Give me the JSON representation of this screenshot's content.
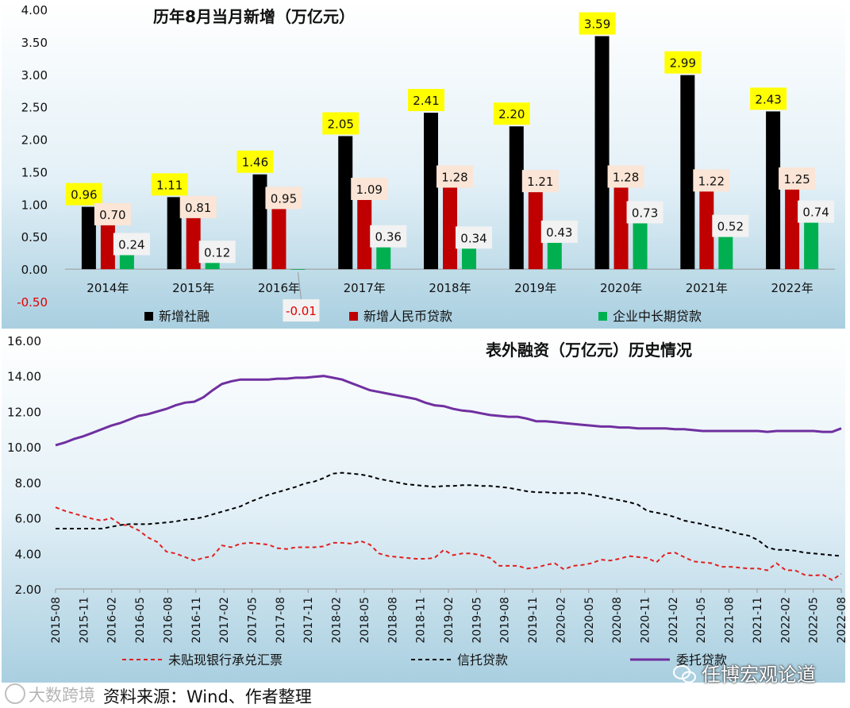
{
  "chart_data": [
    {
      "type": "bar",
      "title": "历年8月当月新增（万亿元）",
      "categories": [
        "2014年",
        "2015年",
        "2016年",
        "2017年",
        "2018年",
        "2019年",
        "2020年",
        "2021年",
        "2022年"
      ],
      "series": [
        {
          "name": "新增社融",
          "color": "#000000",
          "label_bg": "#ffff00",
          "values": [
            0.96,
            1.11,
            1.46,
            2.05,
            2.41,
            2.2,
            3.59,
            2.99,
            2.43
          ]
        },
        {
          "name": "新增人民币贷款",
          "color": "#c00000",
          "label_bg": "#fbe5d6",
          "values": [
            0.7,
            0.81,
            0.95,
            1.09,
            1.28,
            1.21,
            1.28,
            1.22,
            1.25
          ]
        },
        {
          "name": "企业中长期贷款",
          "color": "#00b050",
          "label_bg": "#f2f2f2",
          "values": [
            0.24,
            0.12,
            -0.01,
            0.36,
            0.34,
            0.43,
            0.73,
            0.52,
            0.74
          ]
        }
      ],
      "ylim": [
        -0.5,
        4.0
      ],
      "yticks": [
        "4.00",
        "3.50",
        "3.00",
        "2.50",
        "2.00",
        "1.50",
        "1.00",
        "0.50",
        "0.00",
        "-0.50"
      ],
      "legend": "bottom",
      "grid": false,
      "background": "gradient light-blue"
    },
    {
      "type": "line",
      "title": "表外融资（万亿元）历史情况",
      "ylim": [
        2.0,
        16.0
      ],
      "yticks": [
        "16.00",
        "14.00",
        "12.00",
        "10.00",
        "8.00",
        "6.00",
        "4.00",
        "2.00"
      ],
      "x_start": "2015-08",
      "x_end": "2022-08",
      "xticks": [
        "2015-08",
        "2015-11",
        "2016-02",
        "2016-05",
        "2016-08",
        "2016-11",
        "2017-02",
        "2017-05",
        "2017-08",
        "2017-11",
        "2018-02",
        "2018-05",
        "2018-08",
        "2018-11",
        "2019-02",
        "2019-05",
        "2019-08",
        "2019-11",
        "2020-02",
        "2020-05",
        "2020-08",
        "2020-11",
        "2021-02",
        "2021-05",
        "2021-08",
        "2021-11",
        "2022-02",
        "2022-05",
        "2022-08"
      ],
      "series": [
        {
          "name": "未贴现银行承兑汇票",
          "color": "#e02020",
          "dash": "dashed",
          "values": [
            6.6,
            6.4,
            6.25,
            6.1,
            5.95,
            5.85,
            6.0,
            5.65,
            5.55,
            5.3,
            4.9,
            4.65,
            4.1,
            4.0,
            3.8,
            3.6,
            3.75,
            3.85,
            4.45,
            4.35,
            4.55,
            4.6,
            4.55,
            4.5,
            4.3,
            4.25,
            4.35,
            4.35,
            4.35,
            4.4,
            4.6,
            4.6,
            4.55,
            4.7,
            4.5,
            4.0,
            3.85,
            3.8,
            3.75,
            3.7,
            3.7,
            3.75,
            4.2,
            3.9,
            4.0,
            4.0,
            3.9,
            3.75,
            3.3,
            3.3,
            3.3,
            3.15,
            3.2,
            3.35,
            3.45,
            3.1,
            3.3,
            3.35,
            3.45,
            3.65,
            3.6,
            3.7,
            3.85,
            3.8,
            3.75,
            3.5,
            4.0,
            4.05,
            3.8,
            3.55,
            3.5,
            3.45,
            3.25,
            3.25,
            3.2,
            3.15,
            3.15,
            3.05,
            3.45,
            3.05,
            3.05,
            2.8,
            2.75,
            2.8,
            2.5,
            2.85
          ]
        },
        {
          "name": "信托贷款",
          "color": "#000000",
          "dash": "dashed",
          "values": [
            5.4,
            5.4,
            5.4,
            5.4,
            5.4,
            5.4,
            5.5,
            5.6,
            5.65,
            5.65,
            5.65,
            5.7,
            5.75,
            5.8,
            5.9,
            5.95,
            6.05,
            6.2,
            6.35,
            6.5,
            6.65,
            6.9,
            7.1,
            7.3,
            7.45,
            7.6,
            7.75,
            7.95,
            8.05,
            8.25,
            8.5,
            8.55,
            8.5,
            8.45,
            8.35,
            8.2,
            8.1,
            8.0,
            7.9,
            7.85,
            7.8,
            7.75,
            7.8,
            7.8,
            7.85,
            7.85,
            7.8,
            7.8,
            7.75,
            7.7,
            7.6,
            7.5,
            7.45,
            7.45,
            7.4,
            7.4,
            7.4,
            7.4,
            7.3,
            7.2,
            7.1,
            7.0,
            6.9,
            6.75,
            6.4,
            6.3,
            6.2,
            6.05,
            5.85,
            5.75,
            5.65,
            5.5,
            5.4,
            5.25,
            5.1,
            5.0,
            4.75,
            4.35,
            4.2,
            4.2,
            4.15,
            4.05,
            4.0,
            3.95,
            3.9,
            3.85
          ]
        },
        {
          "name": "委托贷款",
          "color": "#7030a0",
          "dash": "solid",
          "values": [
            10.1,
            10.25,
            10.45,
            10.6,
            10.8,
            11.0,
            11.2,
            11.35,
            11.55,
            11.75,
            11.85,
            12.0,
            12.15,
            12.35,
            12.5,
            12.55,
            12.8,
            13.2,
            13.55,
            13.7,
            13.8,
            13.8,
            13.8,
            13.8,
            13.85,
            13.85,
            13.9,
            13.9,
            13.95,
            14.0,
            13.9,
            13.8,
            13.6,
            13.4,
            13.2,
            13.1,
            13.0,
            12.9,
            12.8,
            12.7,
            12.5,
            12.35,
            12.3,
            12.15,
            12.05,
            12.0,
            11.9,
            11.8,
            11.75,
            11.7,
            11.7,
            11.6,
            11.45,
            11.45,
            11.4,
            11.35,
            11.3,
            11.25,
            11.2,
            11.15,
            11.15,
            11.1,
            11.1,
            11.05,
            11.05,
            11.05,
            11.05,
            11.0,
            11.0,
            10.95,
            10.9,
            10.9,
            10.9,
            10.9,
            10.9,
            10.9,
            10.9,
            10.85,
            10.9,
            10.9,
            10.9,
            10.9,
            10.9,
            10.85,
            10.85,
            11.05
          ]
        }
      ],
      "legend": "bottom",
      "grid": false,
      "background": "gradient light-blue"
    }
  ],
  "footer": {
    "source": "资料来源：Wind、作者整理",
    "watermark_left": "大数跨境",
    "watermark_right": "任博宏观论道"
  }
}
